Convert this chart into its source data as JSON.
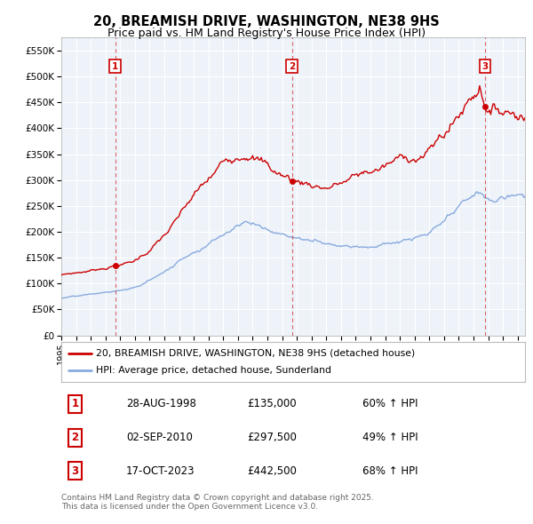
{
  "title": "20, BREAMISH DRIVE, WASHINGTON, NE38 9HS",
  "subtitle": "Price paid vs. HM Land Registry's House Price Index (HPI)",
  "ylim": [
    0,
    575000
  ],
  "yticks": [
    0,
    50000,
    100000,
    150000,
    200000,
    250000,
    300000,
    350000,
    400000,
    450000,
    500000,
    550000
  ],
  "ytick_labels": [
    "£0",
    "£50K",
    "£100K",
    "£150K",
    "£200K",
    "£250K",
    "£300K",
    "£350K",
    "£400K",
    "£450K",
    "£500K",
    "£550K"
  ],
  "xlim_start": 1995.0,
  "xlim_end": 2026.5,
  "sale_dates": [
    1998.66,
    2010.67,
    2023.79
  ],
  "sale_prices": [
    135000,
    297500,
    442500
  ],
  "sale_labels": [
    "1",
    "2",
    "3"
  ],
  "legend_red": "20, BREAMISH DRIVE, WASHINGTON, NE38 9HS (detached house)",
  "legend_blue": "HPI: Average price, detached house, Sunderland",
  "table_data": [
    [
      "1",
      "28-AUG-1998",
      "£135,000",
      "60% ↑ HPI"
    ],
    [
      "2",
      "02-SEP-2010",
      "£297,500",
      "49% ↑ HPI"
    ],
    [
      "3",
      "17-OCT-2023",
      "£442,500",
      "68% ↑ HPI"
    ]
  ],
  "footer": "Contains HM Land Registry data © Crown copyright and database right 2025.\nThis data is licensed under the Open Government Licence v3.0.",
  "red_color": "#cc0000",
  "blue_color": "#88aadd",
  "chart_bg": "#eef3fa",
  "background_color": "#ffffff",
  "grid_color": "#ffffff",
  "title_fontsize": 10.5,
  "subtitle_fontsize": 9
}
